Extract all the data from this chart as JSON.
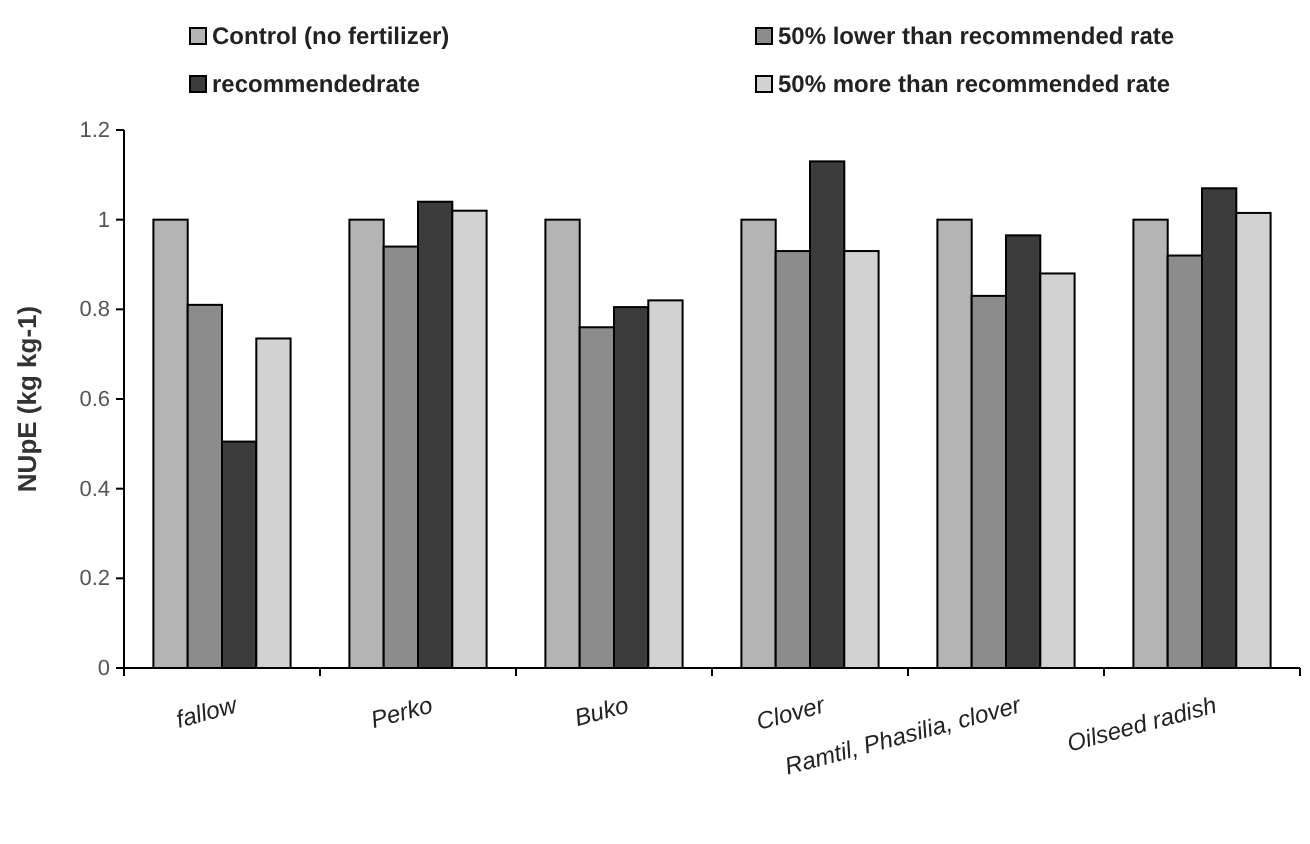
{
  "chart_data": {
    "type": "bar",
    "ylabel": "NUpE (kg kg-1)",
    "categories": [
      "fallow",
      "Perko",
      "Buko",
      "Clover",
      "Ramtil, Phasilia, clover",
      "Oilseed radish"
    ],
    "series": [
      {
        "name": "Control (no fertilizer)",
        "color": "#b4b4b4",
        "values": [
          1,
          1,
          1,
          1,
          1,
          1
        ]
      },
      {
        "name": "50% lower than recommended rate",
        "color": "#8c8c8c",
        "values": [
          0.81,
          0.94,
          0.76,
          0.93,
          0.83,
          0.92
        ]
      },
      {
        "name": "recommendedrate",
        "color": "#3c3c3c",
        "values": [
          0.505,
          1.04,
          0.805,
          1.13,
          0.965,
          1.07
        ]
      },
      {
        "name": "50% more than recommended rate",
        "color": "#d2d2d2",
        "values": [
          0.735,
          1.02,
          0.82,
          0.93,
          0.88,
          1.015
        ]
      }
    ],
    "ylim": [
      0,
      1.2
    ],
    "yticks": [
      0,
      0.2,
      0.4,
      0.6,
      0.8,
      1,
      1.2
    ],
    "grid": false,
    "legend": "top"
  }
}
